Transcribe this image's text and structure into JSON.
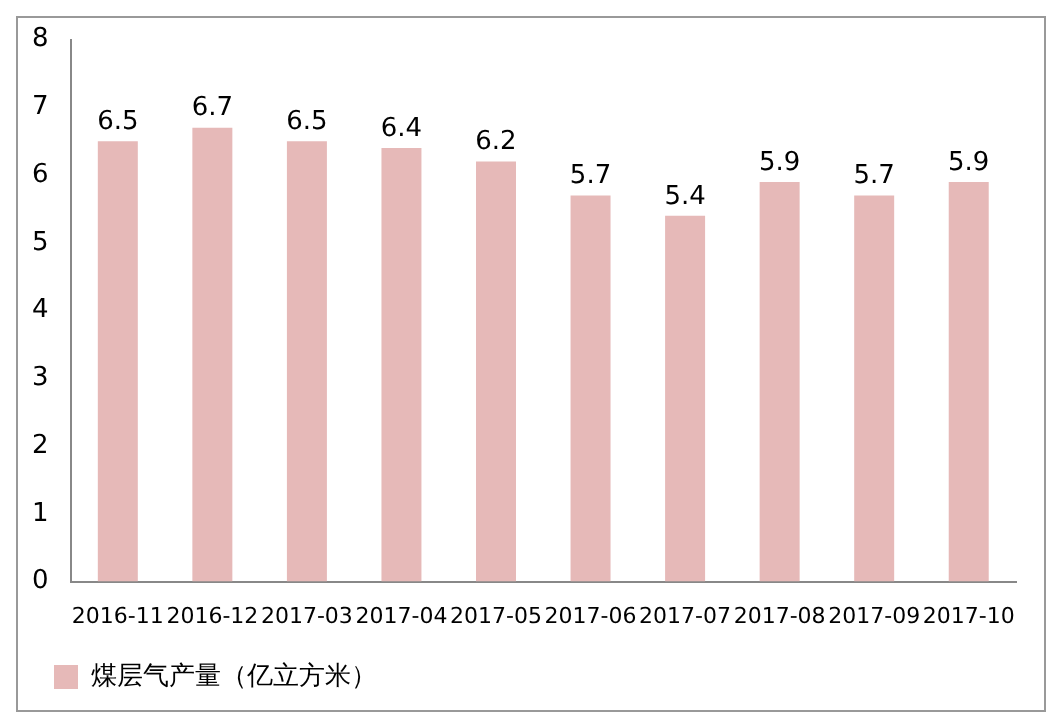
{
  "chart_data": {
    "type": "bar",
    "categories": [
      "2016-11",
      "2016-12",
      "2017-03",
      "2017-04",
      "2017-05",
      "2017-06",
      "2017-07",
      "2017-08",
      "2017-09",
      "2017-10"
    ],
    "series": [
      {
        "name": "煤层气产量（亿立方米）",
        "color": "#e6b9b8",
        "values": [
          6.5,
          6.7,
          6.5,
          6.4,
          6.2,
          5.7,
          5.4,
          5.9,
          5.7,
          5.9
        ]
      }
    ],
    "ylim": [
      0,
      8
    ],
    "yticks": [
      0,
      1,
      2,
      3,
      4,
      5,
      6,
      7,
      8
    ],
    "grid": false,
    "legend": "bottom",
    "data_labels": true
  }
}
